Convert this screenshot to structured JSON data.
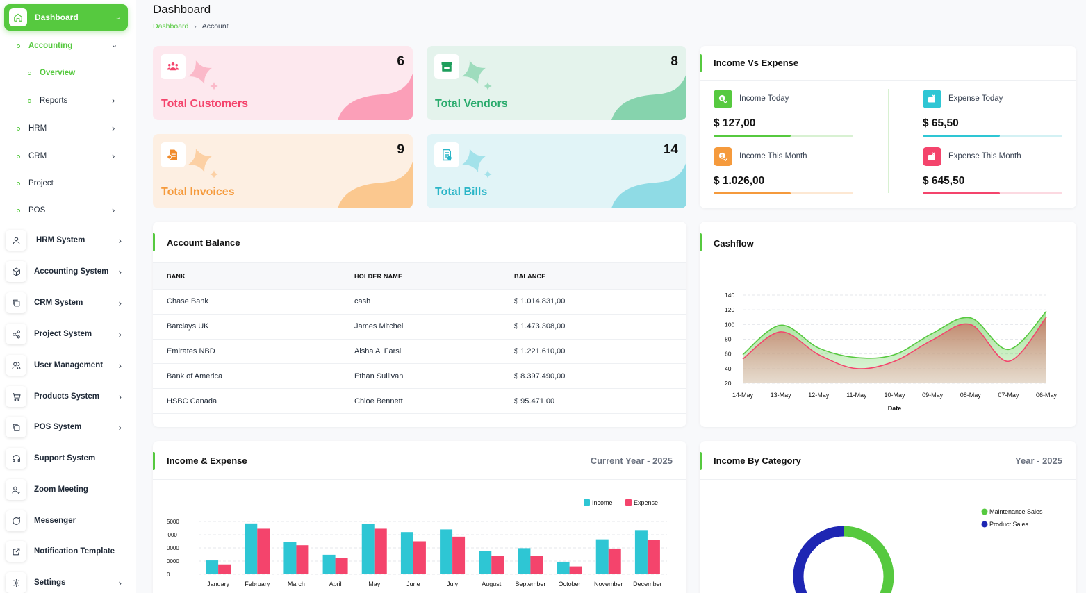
{
  "sidebar": {
    "dashboard": "Dashboard",
    "accounting": "Accounting",
    "overview": "Overview",
    "reports": "Reports",
    "hrm": "HRM",
    "crm": "CRM",
    "project": "Project",
    "pos": "POS",
    "items": [
      {
        "label": "HRM System",
        "icon": "user-icon"
      },
      {
        "label": "Accounting System",
        "icon": "cube-icon"
      },
      {
        "label": "CRM System",
        "icon": "layers-icon"
      },
      {
        "label": "Project System",
        "icon": "share-icon"
      },
      {
        "label": "User Management",
        "icon": "users-icon"
      },
      {
        "label": "Products System",
        "icon": "cart-icon"
      },
      {
        "label": "POS System",
        "icon": "layers-icon"
      },
      {
        "label": "Support System",
        "icon": "headset-icon"
      },
      {
        "label": "Zoom Meeting",
        "icon": "user-check-icon"
      },
      {
        "label": "Messenger",
        "icon": "chat-icon"
      },
      {
        "label": "Notification Template",
        "icon": "external-icon"
      },
      {
        "label": "Settings",
        "icon": "gear-icon"
      }
    ],
    "accent": "#56c93f"
  },
  "header": {
    "title": "Dashboard",
    "breadcrumb": [
      "Dashboard",
      "Account"
    ]
  },
  "stats": {
    "customers": {
      "label": "Total Customers",
      "value": "6",
      "color": "#f4446c",
      "bg": "#fde8ee"
    },
    "vendors": {
      "label": "Total Vendors",
      "value": "8",
      "color": "#2aab6d",
      "bg": "#e4f3ec"
    },
    "invoices": {
      "label": "Total Invoices",
      "value": "9",
      "color": "#f59a3c",
      "bg": "#fdefe2"
    },
    "bills": {
      "label": "Total Bills",
      "value": "14",
      "color": "#2ab5c7",
      "bg": "#e1f4f7"
    }
  },
  "income_vs_expense": {
    "title": "Income Vs Expense",
    "income_today": {
      "label": "Income Today",
      "value": "$ 127,00",
      "progress": 0.55
    },
    "expense_today": {
      "label": "Expense Today",
      "value": "$ 65,50",
      "progress": 0.55
    },
    "income_month": {
      "label": "Income This Month",
      "value": "$ 1.026,00",
      "progress": 0.55
    },
    "expense_month": {
      "label": "Expense This Month",
      "value": "$ 645,50",
      "progress": 0.55
    }
  },
  "account_balance": {
    "title": "Account Balance",
    "columns": [
      "BANK",
      "HOLDER NAME",
      "BALANCE"
    ],
    "rows": [
      [
        "Chase Bank",
        "cash",
        "$ 1.014.831,00"
      ],
      [
        "Barclays UK",
        "James Mitchell",
        "$ 1.473.308,00"
      ],
      [
        "Emirates NBD",
        "Aisha Al Farsi",
        "$ 1.221.610,00"
      ],
      [
        "Bank of America",
        "Ethan Sullivan",
        "$ 8.397.490,00"
      ],
      [
        "HSBC Canada",
        "Chloe Bennett",
        "$ 95.471,00"
      ]
    ]
  },
  "cashflow": {
    "title": "Cashflow"
  },
  "income_expense": {
    "title": "Income & Expense",
    "period": "Current Year - 2025"
  },
  "income_category": {
    "title": "Income By Category",
    "period": "Year - 2025"
  },
  "chart_data": [
    {
      "type": "area",
      "title": "Cashflow",
      "xlabel": "Date",
      "ylabel": "",
      "categories": [
        "14-May",
        "13-May",
        "12-May",
        "11-May",
        "10-May",
        "09-May",
        "08-May",
        "07-May",
        "06-May"
      ],
      "ylim": [
        20,
        140
      ],
      "yticks": [
        20,
        40,
        60,
        80,
        100,
        120,
        140
      ],
      "grid": true,
      "series": [
        {
          "values": [
            59,
            99,
            68,
            55,
            59,
            88,
            109,
            66,
            118
          ],
          "color": "#56c93f"
        },
        {
          "values": [
            53,
            90,
            59,
            40,
            50,
            79,
            100,
            50,
            110
          ],
          "color": "#f4446c"
        }
      ]
    },
    {
      "type": "bar",
      "title": "Income & Expense",
      "categories": [
        "January",
        "February",
        "March",
        "April",
        "May",
        "June",
        "July",
        "August",
        "September",
        "October",
        "November",
        "December"
      ],
      "ylim": [
        0,
        40000
      ],
      "yticks": [
        "0",
        "0000",
        "0000",
        "'000",
        "5000"
      ],
      "legend": "top-right",
      "series": [
        {
          "name": "Income",
          "color": "#2ec6d4",
          "values": [
            10500,
            38500,
            24500,
            14800,
            38200,
            32000,
            34000,
            17500,
            19800,
            9500,
            26500,
            33500
          ]
        },
        {
          "name": "Expense",
          "color": "#f4446c",
          "values": [
            7500,
            34500,
            22000,
            12200,
            34500,
            25000,
            28500,
            14000,
            14200,
            6000,
            19500,
            26300
          ]
        }
      ]
    },
    {
      "type": "pie",
      "title": "Income By Category",
      "legend": "top-right",
      "donut": true,
      "slices": [
        {
          "name": "Maintenance Sales",
          "value": 50,
          "color": "#56c93f"
        },
        {
          "name": "Product Sales",
          "value": 50,
          "color": "#1e26b3"
        }
      ]
    }
  ]
}
